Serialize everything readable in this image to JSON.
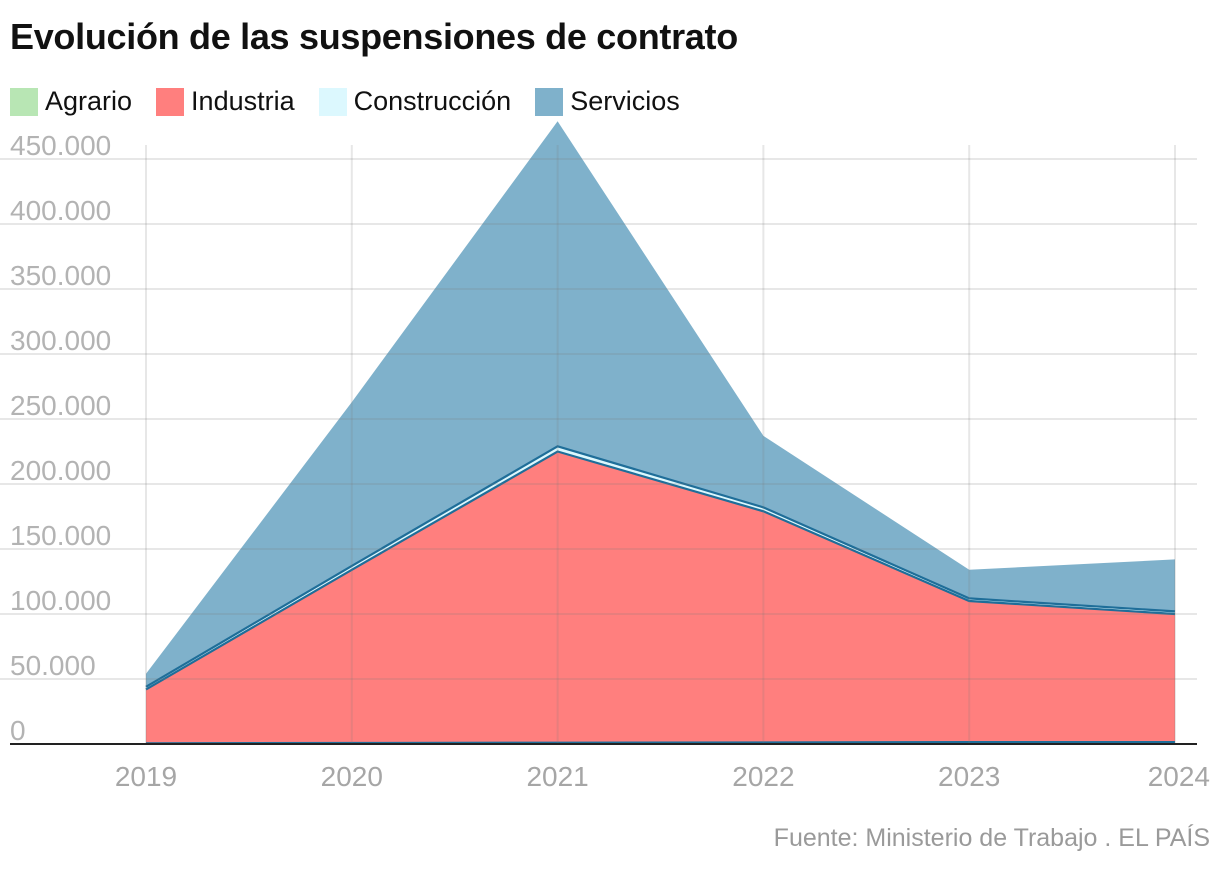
{
  "title": "Evolución de las suspensiones de contrato",
  "source": "Fuente: Ministerio de Trabajo . EL PAÍS",
  "chart_data": {
    "type": "area",
    "stacked": true,
    "x": [
      "2019",
      "2020",
      "2021",
      "2022",
      "2023",
      "2024"
    ],
    "series": [
      {
        "name": "Agrario",
        "color": "#b8e6b4",
        "values": [
          500,
          800,
          1000,
          1200,
          1500,
          1500
        ]
      },
      {
        "name": "Industria",
        "color": "#ff7f7e",
        "values": [
          41500,
          133200,
          224000,
          177800,
          108500,
          98500
        ]
      },
      {
        "name": "Construcción",
        "color": "#dcf8fe",
        "values": [
          2000,
          3000,
          4000,
          3000,
          2000,
          2000
        ]
      },
      {
        "name": "Servicios",
        "color": "#7fb1cb",
        "values": [
          10000,
          126000,
          250000,
          55000,
          22000,
          40000
        ]
      }
    ],
    "y_ticks": [
      "0",
      "50.000",
      "100.000",
      "150.000",
      "200.000",
      "250.000",
      "300.000",
      "350.000",
      "400.000",
      "450.000"
    ],
    "ylim": [
      0,
      480000
    ],
    "grid": true,
    "legend_position": "top-left"
  }
}
